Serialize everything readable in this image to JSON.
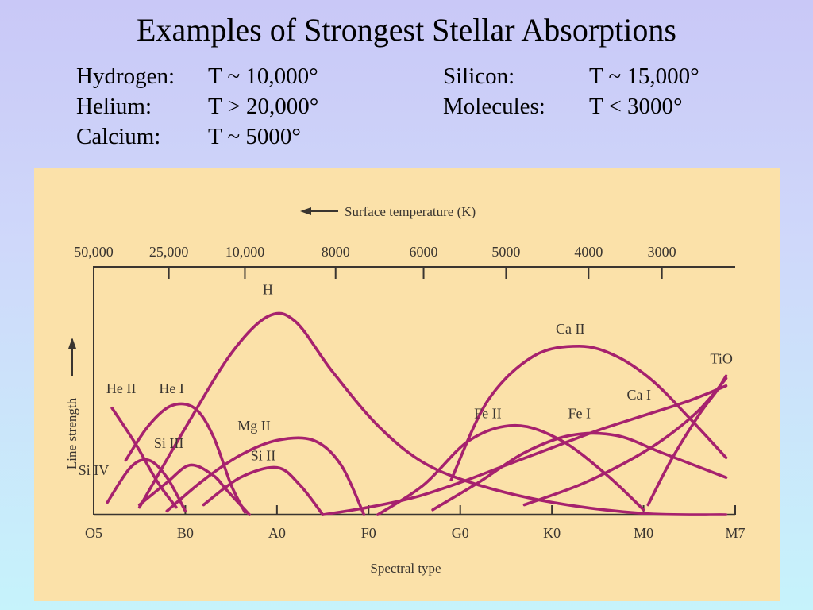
{
  "slide": {
    "title": "Examples of Strongest Stellar Absorptions",
    "rows": [
      {
        "element": "Hydrogen:",
        "temp": "T ~ 10,000°"
      },
      {
        "element": "Helium:",
        "temp": "T > 20,000°"
      },
      {
        "element": "Calcium:",
        "temp": "T ~ 5000°"
      },
      {
        "element": "Silicon:",
        "temp": "T ~ 15,000°"
      },
      {
        "element": "Molecules:",
        "temp": "T < 3000°"
      }
    ]
  },
  "colors": {
    "curve": "#a6216e",
    "panel": "#fbe1a9",
    "axis": "#3a3530"
  },
  "chart_data": {
    "type": "line",
    "title": "",
    "top_axis_label": "Surface temperature (K)",
    "xlabel": "Spectral type",
    "ylabel": "Line strength",
    "xlim": [
      0,
      7
    ],
    "ylim": [
      0,
      10
    ],
    "x_ticks": [
      {
        "x": 0,
        "label": "O5"
      },
      {
        "x": 1,
        "label": "B0"
      },
      {
        "x": 2,
        "label": "A0"
      },
      {
        "x": 3,
        "label": "F0"
      },
      {
        "x": 4,
        "label": "G0"
      },
      {
        "x": 5,
        "label": "K0"
      },
      {
        "x": 6,
        "label": "M0"
      },
      {
        "x": 7,
        "label": "M7"
      }
    ],
    "top_ticks": [
      {
        "x": 0,
        "label": "50,000"
      },
      {
        "x": 0.82,
        "label": "25,000"
      },
      {
        "x": 1.65,
        "label": "10,000"
      },
      {
        "x": 2.64,
        "label": "8000"
      },
      {
        "x": 3.6,
        "label": "6000"
      },
      {
        "x": 4.5,
        "label": "5000"
      },
      {
        "x": 5.4,
        "label": "4000"
      },
      {
        "x": 6.2,
        "label": "3000"
      }
    ],
    "series": [
      {
        "name": "He II",
        "x": [
          0.2,
          0.45,
          0.7,
          0.9
        ],
        "y": [
          4.3,
          2.9,
          1.3,
          0.3
        ],
        "label_x": 0.3,
        "label_y": 4.9
      },
      {
        "name": "He I",
        "x": [
          0.35,
          0.6,
          0.85,
          1.1,
          1.3,
          1.5,
          1.65
        ],
        "y": [
          2.2,
          3.6,
          4.4,
          4.3,
          3.2,
          1.2,
          0.1
        ],
        "label_x": 0.85,
        "label_y": 4.9
      },
      {
        "name": "H",
        "x": [
          0.5,
          1.0,
          1.5,
          1.9,
          2.2,
          2.6,
          3.1,
          3.6,
          4.2,
          5.0,
          6.0,
          6.9
        ],
        "y": [
          0.3,
          3.5,
          6.5,
          8.0,
          7.8,
          5.8,
          3.6,
          2.1,
          1.2,
          0.5,
          0.05,
          0.0
        ],
        "label_x": 1.9,
        "label_y": 8.9
      },
      {
        "name": "Si IV",
        "x": [
          0.15,
          0.4,
          0.6,
          0.8,
          1.0
        ],
        "y": [
          0.5,
          1.9,
          2.2,
          1.5,
          0.15
        ],
        "label_x": 0.0,
        "label_y": 1.6
      },
      {
        "name": "Si III",
        "x": [
          0.5,
          0.8,
          1.05,
          1.3,
          1.45,
          1.7
        ],
        "y": [
          0.4,
          1.3,
          2.0,
          1.6,
          1.0,
          0.0
        ],
        "label_x": 0.82,
        "label_y": 2.7
      },
      {
        "name": "Mg II",
        "x": [
          0.8,
          1.2,
          1.6,
          2.0,
          2.4,
          2.7,
          2.95
        ],
        "y": [
          0.15,
          1.4,
          2.4,
          3.0,
          3.0,
          2.0,
          0.0
        ],
        "label_x": 1.75,
        "label_y": 3.4
      },
      {
        "name": "Si II",
        "x": [
          1.2,
          1.6,
          2.0,
          2.25,
          2.5
        ],
        "y": [
          0.4,
          1.5,
          1.9,
          1.2,
          0.0
        ],
        "label_x": 1.85,
        "label_y": 2.2
      },
      {
        "name": "Ca II",
        "x": [
          3.9,
          4.3,
          4.8,
          5.3,
          5.7,
          6.1,
          6.5,
          6.9
        ],
        "y": [
          1.4,
          4.6,
          6.4,
          6.8,
          6.4,
          5.4,
          3.9,
          2.3
        ],
        "label_x": 5.2,
        "label_y": 7.3
      },
      {
        "name": "Fe II",
        "x": [
          3.1,
          3.6,
          4.1,
          4.6,
          5.1,
          5.6,
          6.0
        ],
        "y": [
          0.0,
          1.2,
          3.0,
          3.6,
          3.0,
          1.6,
          0.2
        ],
        "label_x": 4.3,
        "label_y": 3.9
      },
      {
        "name": "Fe I",
        "x": [
          3.7,
          4.2,
          4.7,
          5.2,
          5.7,
          6.2,
          6.9
        ],
        "y": [
          0.2,
          1.3,
          2.5,
          3.2,
          3.2,
          2.5,
          1.5
        ],
        "label_x": 5.3,
        "label_y": 3.9
      },
      {
        "name": "Ca I",
        "x": [
          2.5,
          3.0,
          3.5,
          4.0,
          4.5,
          5.0,
          5.5,
          6.0,
          6.5,
          6.9
        ],
        "y": [
          0.0,
          0.3,
          0.7,
          1.3,
          2.0,
          2.7,
          3.4,
          4.0,
          4.6,
          5.2
        ],
        "label_x": 5.95,
        "label_y": 4.65
      },
      {
        "name": "TiO",
        "x": [
          6.05,
          6.3,
          6.6,
          6.8,
          6.9
        ],
        "y": [
          0.4,
          2.2,
          4.0,
          5.0,
          5.6
        ],
        "label_x": 6.85,
        "label_y": 6.1
      },
      {
        "name": "",
        "x": [
          4.7,
          5.3,
          5.8,
          6.2,
          6.6,
          6.9
        ],
        "y": [
          0.4,
          1.2,
          2.1,
          3.0,
          4.2,
          5.5
        ],
        "label_x": null,
        "label_y": null
      }
    ]
  }
}
